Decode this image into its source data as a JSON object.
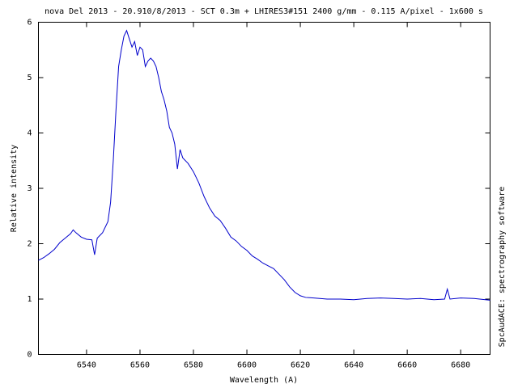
{
  "chart_data": {
    "type": "line",
    "title": "nova Del 2013 - 20.910/8/2013 - SCT 0.3m + LHIRES3#151 2400 g/mm - 0.115 A/pixel - 1x600 s",
    "x_label": "Wavelength (A)",
    "y_label": "Relative intensity",
    "annotation": "SpcAudACE: spectrography software",
    "xlim": [
      6522,
      6691
    ],
    "ylim": [
      0,
      6
    ],
    "xticks": [
      6540,
      6560,
      6580,
      6600,
      6620,
      6640,
      6660,
      6680
    ],
    "yticks": [
      0,
      1,
      2,
      3,
      4,
      5,
      6
    ],
    "grid": false,
    "series": [
      {
        "color": "#0000cc",
        "x": [
          6522,
          6524,
          6526,
          6528,
          6530,
          6532,
          6534,
          6535,
          6536,
          6538,
          6540,
          6542,
          6543,
          6544,
          6546,
          6548,
          6549,
          6550,
          6551,
          6552,
          6553,
          6554,
          6555,
          6556,
          6557,
          6558,
          6559,
          6560,
          6561,
          6562,
          6563,
          6564,
          6565,
          6566,
          6567,
          6568,
          6569,
          6570,
          6571,
          6572,
          6573,
          6574,
          6575,
          6576,
          6578,
          6580,
          6582,
          6584,
          6586,
          6588,
          6590,
          6592,
          6594,
          6596,
          6598,
          6600,
          6602,
          6604,
          6606,
          6608,
          6610,
          6612,
          6614,
          6616,
          6618,
          6620,
          6622,
          6625,
          6630,
          6635,
          6640,
          6645,
          6650,
          6655,
          6660,
          6665,
          6670,
          6674,
          6675,
          6676,
          6680,
          6685,
          6691
        ],
        "values": [
          1.7,
          1.75,
          1.82,
          1.9,
          2.02,
          2.1,
          2.18,
          2.25,
          2.2,
          2.12,
          2.08,
          2.07,
          1.8,
          2.1,
          2.2,
          2.4,
          2.75,
          3.5,
          4.4,
          5.2,
          5.5,
          5.75,
          5.85,
          5.7,
          5.55,
          5.65,
          5.4,
          5.55,
          5.5,
          5.2,
          5.3,
          5.35,
          5.3,
          5.2,
          5.0,
          4.75,
          4.6,
          4.4,
          4.1,
          4.0,
          3.8,
          3.35,
          3.7,
          3.55,
          3.45,
          3.3,
          3.1,
          2.85,
          2.65,
          2.5,
          2.42,
          2.28,
          2.12,
          2.05,
          1.95,
          1.88,
          1.78,
          1.72,
          1.65,
          1.6,
          1.55,
          1.45,
          1.35,
          1.22,
          1.12,
          1.06,
          1.03,
          1.02,
          1.0,
          1.0,
          0.99,
          1.01,
          1.02,
          1.01,
          1.0,
          1.01,
          0.99,
          1.0,
          1.18,
          1.0,
          1.02,
          1.01,
          0.98
        ]
      }
    ]
  }
}
